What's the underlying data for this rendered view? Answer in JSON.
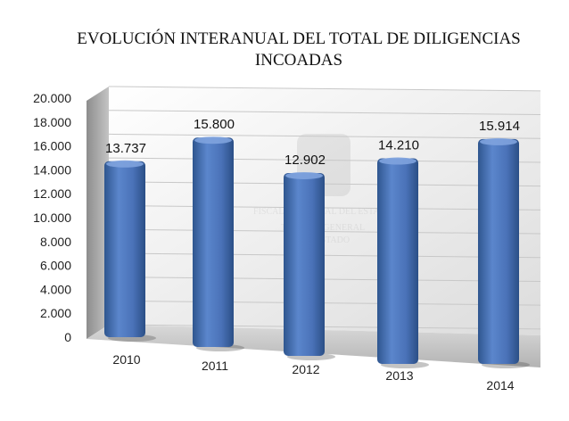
{
  "chart_data": {
    "type": "bar",
    "title_lines": [
      "EVOLUCIÓN INTERANUAL DEL TOTAL DE DILIGENCIAS",
      "INCOADAS"
    ],
    "categories": [
      "2010",
      "2011",
      "2012",
      "2013",
      "2014"
    ],
    "values": [
      13737,
      15800,
      12902,
      14210,
      15914
    ],
    "data_labels": [
      "13.737",
      "15.800",
      "12.902",
      "14.210",
      "15.914"
    ],
    "y_ticks": [
      "0",
      "2.000",
      "4.000",
      "6.000",
      "8.000",
      "10.000",
      "12.000",
      "14.000",
      "16.000",
      "18.000",
      "20.000"
    ],
    "ylim": [
      0,
      20000
    ],
    "grid": true,
    "legend": "none",
    "bar_color": "#4a72b8",
    "watermark_lines": [
      "FISCALÍA GENERAL DEL ESTADO",
      "TISCALÍA GENERAL",
      "DEL ESTADO"
    ]
  }
}
